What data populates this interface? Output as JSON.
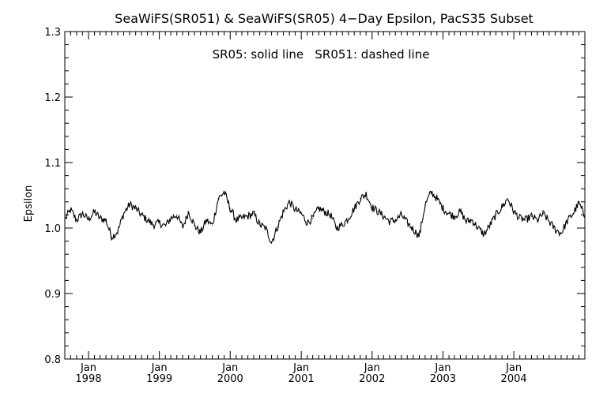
{
  "chart_data": {
    "type": "line",
    "title": "SeaWiFS(SR051) & SeaWiFS(SR05) 4−Day Epsilon, PacS35 Subset",
    "annotation": "SR05: solid line   SR051: dashed line",
    "ylabel": "Epsilon",
    "xlabel": "",
    "ylim": [
      0.8,
      1.3
    ],
    "yticks": [
      "0.8",
      "0.9",
      "1.0",
      "1.1",
      "1.2",
      "1.3"
    ],
    "xlim": [
      "1997-09-01",
      "2005-01-01"
    ],
    "xticks": [
      {
        "month": "Jan",
        "year": "1998"
      },
      {
        "month": "Jan",
        "year": "1999"
      },
      {
        "month": "Jan",
        "year": "2000"
      },
      {
        "month": "Jan",
        "year": "2001"
      },
      {
        "month": "Jan",
        "year": "2002"
      },
      {
        "month": "Jan",
        "year": "2003"
      },
      {
        "month": "Jan",
        "year": "2004"
      }
    ],
    "grid": false,
    "series": [
      {
        "style": "solid",
        "x": [
          "1997-09-05",
          "1997-10-01",
          "1997-11-01",
          "1997-12-01",
          "1998-01-01",
          "1998-02-01",
          "1998-03-01",
          "1998-04-01",
          "1998-05-01",
          "1998-06-01",
          "1998-07-01",
          "1998-08-01",
          "1998-09-01",
          "1998-10-01",
          "1998-11-01",
          "1998-12-01",
          "1999-01-01",
          "1999-02-01",
          "1999-03-01",
          "1999-04-01",
          "1999-05-01",
          "1999-06-01",
          "1999-07-01",
          "1999-08-01",
          "1999-09-01",
          "1999-10-01",
          "1999-11-01",
          "1999-12-01",
          "2000-01-01",
          "2000-02-01",
          "2000-03-01",
          "2000-04-01",
          "2000-05-01",
          "2000-06-01",
          "2000-07-01",
          "2000-08-01",
          "2000-09-01",
          "2000-10-01",
          "2000-11-01",
          "2000-12-01",
          "2001-01-01",
          "2001-02-01",
          "2001-03-01",
          "2001-04-01",
          "2001-05-01",
          "2001-06-01",
          "2001-07-01",
          "2001-08-01",
          "2001-09-01",
          "2001-10-01",
          "2001-11-01",
          "2001-12-01",
          "2002-01-01",
          "2002-02-01",
          "2002-03-01",
          "2002-04-01",
          "2002-05-01",
          "2002-06-01",
          "2002-07-01",
          "2002-08-01",
          "2002-09-01",
          "2002-10-01",
          "2002-11-01",
          "2002-12-01",
          "2003-01-01",
          "2003-02-01",
          "2003-03-01",
          "2003-04-01",
          "2003-05-01",
          "2003-06-01",
          "2003-07-01",
          "2003-08-01",
          "2003-09-01",
          "2003-10-01",
          "2003-11-01",
          "2003-12-01",
          "2004-01-01",
          "2004-02-01",
          "2004-03-01",
          "2004-04-01",
          "2004-05-01",
          "2004-06-01",
          "2004-07-01",
          "2004-08-01",
          "2004-09-01",
          "2004-10-01",
          "2004-11-01",
          "2004-12-01",
          "2004-12-31"
        ],
        "y": [
          1.015,
          1.028,
          1.012,
          1.022,
          1.013,
          1.025,
          1.015,
          1.012,
          0.986,
          0.995,
          1.022,
          1.036,
          1.03,
          1.02,
          1.012,
          1.005,
          1.008,
          1.003,
          1.015,
          1.02,
          1.001,
          1.025,
          1.004,
          0.993,
          1.012,
          1.004,
          1.045,
          1.055,
          1.03,
          1.012,
          1.015,
          1.018,
          1.022,
          1.005,
          1.0,
          0.978,
          1.002,
          1.025,
          1.04,
          1.028,
          1.022,
          1.008,
          1.015,
          1.03,
          1.025,
          1.02,
          1.0,
          1.005,
          1.015,
          1.03,
          1.045,
          1.052,
          1.032,
          1.025,
          1.018,
          1.01,
          1.012,
          1.02,
          1.008,
          0.998,
          0.988,
          1.035,
          1.055,
          1.045,
          1.03,
          1.022,
          1.018,
          1.025,
          1.01,
          1.012,
          1.0,
          0.99,
          1.005,
          1.02,
          1.032,
          1.045,
          1.025,
          1.015,
          1.012,
          1.018,
          1.012,
          1.022,
          1.01,
          0.998,
          0.992,
          1.01,
          1.022,
          1.038,
          1.018
        ]
      }
    ]
  }
}
